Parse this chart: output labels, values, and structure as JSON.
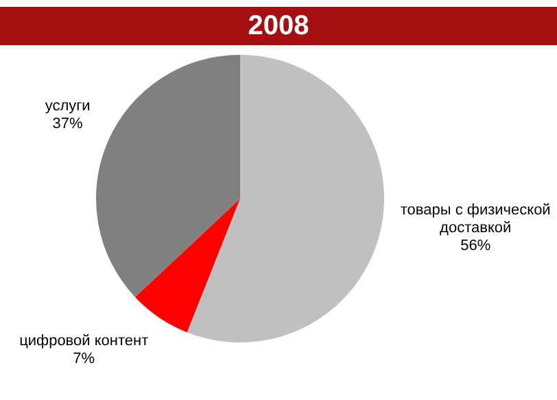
{
  "chart_data": {
    "type": "pie",
    "title": "2008",
    "categories": [
      "товары с физической доставкой",
      "цифровой контент",
      "услуги"
    ],
    "values": [
      56,
      7,
      37
    ],
    "colors": [
      "#c0c0c0",
      "#ff0000",
      "#808080"
    ],
    "value_labels": [
      "56%",
      "7%",
      "37%"
    ],
    "legend": false
  }
}
